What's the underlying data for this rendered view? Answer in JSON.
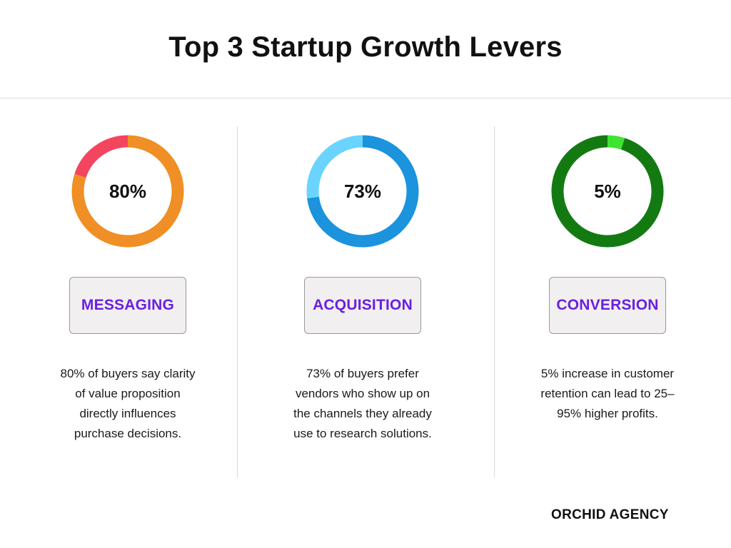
{
  "title": "Top 3 Startup Growth Levers",
  "brand": "ORCHID AGENCY",
  "chart_data": [
    {
      "type": "pie",
      "pct_label": "80%",
      "value": 80,
      "label": "MESSAGING",
      "description": "80% of buyers say clarity of value proposition directly influences purchase decisions.",
      "colors": {
        "value": "#ef8f26",
        "remainder": "#f4455f"
      }
    },
    {
      "type": "pie",
      "pct_label": "73%",
      "value": 73,
      "label": "ACQUISITION",
      "description": "73% of buyers prefer vendors who show up on the channels they already use to research solutions.",
      "colors": {
        "value": "#1b93dd",
        "remainder": "#6ad4ff"
      }
    },
    {
      "type": "pie",
      "pct_label": "5%",
      "value": 5,
      "label": "CONVERSION",
      "description": "5% increase in customer retention can lead to 25–95% higher profits.",
      "colors": {
        "value": "#3fe432",
        "remainder": "#137a12"
      }
    }
  ],
  "colors": {
    "label_text": "#6a1fe0",
    "label_box_bg": "#f1efef",
    "divider": "#d8d8d8"
  }
}
